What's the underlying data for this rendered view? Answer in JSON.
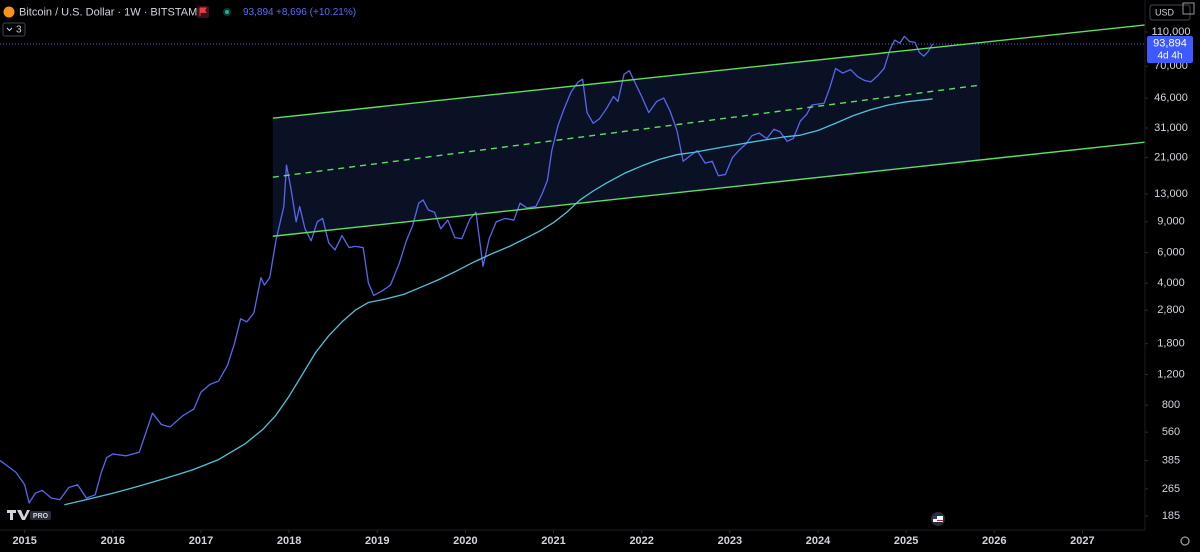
{
  "header": {
    "symbol": "Bitcoin / U.S. Dollar · 1W · BITSTAMP",
    "price": "93,894",
    "change": "+8,696 (+10.21%)",
    "indicators": "3",
    "currency": "USD",
    "badge": "PRO"
  },
  "chart_data": {
    "type": "line",
    "title": "Bitcoin / U.S. Dollar · 1W · BITSTAMP",
    "log_scale": true,
    "grid": false,
    "xlim": [
      2014.72,
      2027.71
    ],
    "ylim": [
      154,
      122300
    ],
    "xticks": [
      2015,
      2016,
      2017,
      2018,
      2019,
      2020,
      2021,
      2022,
      2023,
      2024,
      2025,
      2026,
      2027
    ],
    "yticks": [
      185,
      265,
      385,
      560,
      800,
      {
        "value": 1200,
        "label": "1,200"
      },
      {
        "value": 1800,
        "label": "1,800"
      },
      {
        "value": 2800,
        "label": "2,800"
      },
      {
        "value": 4000,
        "label": "4,000"
      },
      {
        "value": 6000,
        "label": "6,000"
      },
      {
        "value": 9000,
        "label": "9,000"
      },
      {
        "value": 13000,
        "label": "13,000"
      },
      {
        "value": 21000,
        "label": "21,000"
      },
      {
        "value": 31000,
        "label": "31,000"
      },
      {
        "value": 46000,
        "label": "46,000"
      },
      {
        "value": 70000,
        "label": "70,000"
      },
      {
        "value": 110000,
        "label": "110,000"
      }
    ],
    "price_tag": {
      "value": 93894,
      "label": "93,894",
      "countdown": "4d 4h",
      "color": "#3d5afe"
    },
    "series": [
      {
        "color": "#5866f0",
        "width": 1.3,
        "style": "solid",
        "x": [
          2014.72,
          2014.8,
          2014.9,
          2015.0,
          2015.05,
          2015.12,
          2015.2,
          2015.3,
          2015.4,
          2015.5,
          2015.6,
          2015.7,
          2015.8,
          2015.87,
          2015.93,
          2016.0,
          2016.15,
          2016.3,
          2016.45,
          2016.55,
          2016.65,
          2016.8,
          2016.92,
          2017.0,
          2017.1,
          2017.2,
          2017.3,
          2017.38,
          2017.45,
          2017.52,
          2017.6,
          2017.68,
          2017.72,
          2017.78,
          2017.85,
          2017.9,
          2017.94,
          2017.97,
          2018.02,
          2018.08,
          2018.12,
          2018.18,
          2018.25,
          2018.32,
          2018.38,
          2018.45,
          2018.52,
          2018.6,
          2018.68,
          2018.75,
          2018.84,
          2018.9,
          2018.96,
          2019.05,
          2019.15,
          2019.25,
          2019.33,
          2019.4,
          2019.47,
          2019.52,
          2019.58,
          2019.65,
          2019.72,
          2019.8,
          2019.88,
          2019.96,
          2020.05,
          2020.12,
          2020.2,
          2020.27,
          2020.35,
          2020.45,
          2020.55,
          2020.62,
          2020.7,
          2020.8,
          2020.87,
          2020.93,
          2020.98,
          2021.05,
          2021.12,
          2021.2,
          2021.28,
          2021.33,
          2021.38,
          2021.45,
          2021.52,
          2021.6,
          2021.68,
          2021.73,
          2021.8,
          2021.86,
          2021.92,
          2022.0,
          2022.08,
          2022.17,
          2022.25,
          2022.32,
          2022.4,
          2022.47,
          2022.55,
          2022.63,
          2022.72,
          2022.8,
          2022.87,
          2022.95,
          2023.03,
          2023.1,
          2023.18,
          2023.25,
          2023.33,
          2023.42,
          2023.5,
          2023.57,
          2023.65,
          2023.72,
          2023.8,
          2023.87,
          2023.93,
          2024.0,
          2024.07,
          2024.13,
          2024.2,
          2024.28,
          2024.37,
          2024.45,
          2024.53,
          2024.6,
          2024.68,
          2024.75,
          2024.82,
          2024.87,
          2024.93,
          2024.98,
          2025.04,
          2025.1,
          2025.15,
          2025.2,
          2025.25,
          2025.3
        ],
        "values": [
          385,
          360,
          330,
          280,
          220,
          250,
          260,
          235,
          230,
          270,
          280,
          235,
          245,
          330,
          400,
          420,
          410,
          430,
          720,
          620,
          600,
          700,
          760,
          950,
          1050,
          1100,
          1350,
          1800,
          2500,
          2400,
          2700,
          4300,
          3900,
          4300,
          7000,
          9000,
          11000,
          19000,
          14000,
          9000,
          11000,
          8200,
          7000,
          9000,
          9400,
          6800,
          6200,
          7500,
          6400,
          6500,
          6400,
          4000,
          3400,
          3600,
          3900,
          5200,
          7000,
          8500,
          11500,
          12000,
          10500,
          10200,
          8200,
          9200,
          7300,
          7200,
          9300,
          10200,
          5000,
          7200,
          9000,
          9400,
          9200,
          11500,
          10800,
          11000,
          13000,
          15500,
          23000,
          32000,
          40000,
          50000,
          57000,
          59000,
          38000,
          33000,
          35000,
          40000,
          47000,
          44000,
          63000,
          66000,
          57000,
          47000,
          38000,
          44000,
          46000,
          39000,
          30000,
          20000,
          21500,
          23000,
          19500,
          20000,
          16500,
          16800,
          21000,
          23000,
          25000,
          28000,
          29000,
          27000,
          30500,
          29500,
          26000,
          27000,
          34000,
          37000,
          42000,
          42500,
          43000,
          52000,
          68000,
          64000,
          67000,
          61000,
          58000,
          57000,
          62000,
          68000,
          88000,
          99000,
          95000,
          104000,
          97000,
          96000,
          84000,
          80000,
          85000,
          93894
        ]
      },
      {
        "color": "#4fc3d9",
        "width": 1.3,
        "style": "solid",
        "x": [
          2015.45,
          2015.7,
          2016.0,
          2016.3,
          2016.6,
          2016.9,
          2017.2,
          2017.5,
          2017.7,
          2017.85,
          2018.0,
          2018.15,
          2018.3,
          2018.45,
          2018.6,
          2018.75,
          2018.9,
          2019.1,
          2019.3,
          2019.5,
          2019.7,
          2019.9,
          2020.1,
          2020.3,
          2020.5,
          2020.7,
          2020.85,
          2021.0,
          2021.15,
          2021.3,
          2021.45,
          2021.6,
          2021.8,
          2022.0,
          2022.2,
          2022.4,
          2022.6,
          2022.8,
          2023.0,
          2023.2,
          2023.4,
          2023.6,
          2023.8,
          2024.0,
          2024.2,
          2024.4,
          2024.6,
          2024.8,
          2025.0,
          2025.3
        ],
        "values": [
          215,
          230,
          250,
          275,
          305,
          340,
          390,
          480,
          580,
          700,
          900,
          1200,
          1600,
          2000,
          2400,
          2800,
          3100,
          3250,
          3450,
          3800,
          4200,
          4700,
          5300,
          5900,
          6500,
          7300,
          8000,
          8900,
          10200,
          12000,
          13500,
          15000,
          17000,
          18800,
          20500,
          21800,
          22500,
          23500,
          24500,
          25500,
          26500,
          27500,
          28200,
          30000,
          33000,
          36500,
          39500,
          42000,
          43800,
          45500
        ]
      },
      {
        "color": "#5ddf62",
        "width": 1.4,
        "style": "solid",
        "x": [
          2017.815,
          2027.71
        ],
        "values": [
          35300,
          120700
        ]
      },
      {
        "color": "#5ddf62",
        "width": 1.4,
        "style": "dashed",
        "x": [
          2017.815,
          2025.84
        ],
        "values": [
          16200,
          54600
        ]
      },
      {
        "color": "#5ddf62",
        "width": 1.4,
        "style": "solid",
        "x": [
          2017.815,
          2027.71
        ],
        "values": [
          7430,
          25700
        ]
      }
    ],
    "channel_fill": "#0b1226"
  }
}
